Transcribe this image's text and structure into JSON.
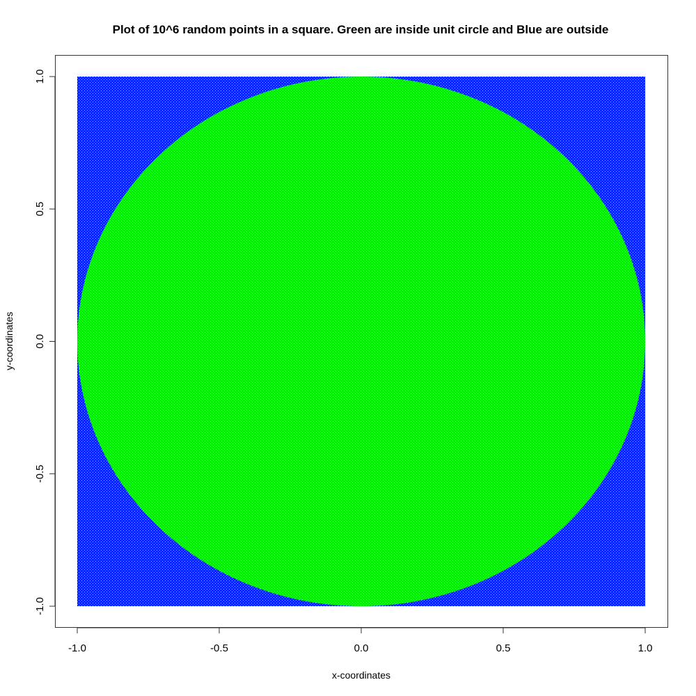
{
  "chart_data": {
    "type": "scatter",
    "title": "Plot of 10^6 random points in a square. Green are inside unit circle and Blue are outside",
    "xlabel": "x-coordinates",
    "ylabel": "y-coordinates",
    "xlim": [
      -1.0,
      1.0
    ],
    "ylim": [
      -1.0,
      1.0
    ],
    "x_ticks": [
      -1.0,
      -0.5,
      0.0,
      0.5,
      1.0
    ],
    "x_tick_labels": [
      "-1.0",
      "-0.5",
      "0.0",
      "0.5",
      "1.0"
    ],
    "y_ticks": [
      -1.0,
      -0.5,
      0.0,
      0.5,
      1.0
    ],
    "y_tick_labels": [
      "-1.0",
      "-0.5",
      "0.0",
      "0.5",
      "1.0"
    ],
    "grid": false,
    "legend": "none",
    "point_count": 1000000,
    "circle_radius": 1.0,
    "series": [
      {
        "region": "inside",
        "color": "#00ee00"
      },
      {
        "region": "outside",
        "color": "#0022ff"
      }
    ]
  }
}
